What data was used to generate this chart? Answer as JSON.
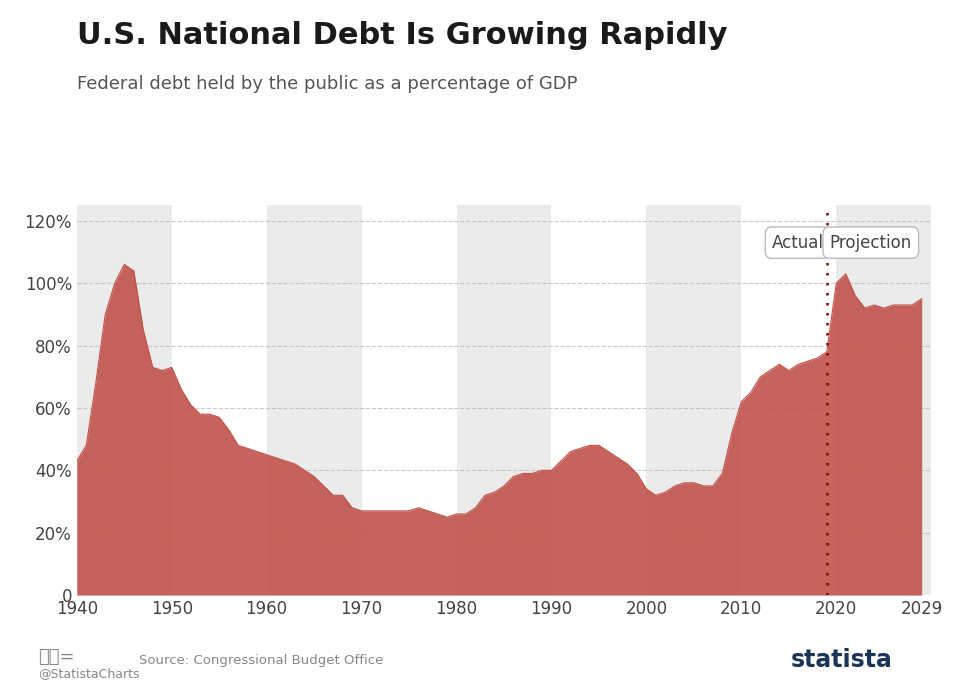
{
  "title": "U.S. National Debt Is Growing Rapidly",
  "subtitle": "Federal debt held by the public as a percentage of GDP",
  "source": "Source: Congressional Budget Office",
  "credit": "@StatistaCharts",
  "actual_label": "Actual",
  "projection_label": "Projection",
  "divider_year": 2019,
  "years": [
    1940,
    1941,
    1942,
    1943,
    1944,
    1945,
    1946,
    1947,
    1948,
    1949,
    1950,
    1951,
    1952,
    1953,
    1954,
    1955,
    1956,
    1957,
    1958,
    1959,
    1960,
    1961,
    1962,
    1963,
    1964,
    1965,
    1966,
    1967,
    1968,
    1969,
    1970,
    1971,
    1972,
    1973,
    1974,
    1975,
    1976,
    1977,
    1978,
    1979,
    1980,
    1981,
    1982,
    1983,
    1984,
    1985,
    1986,
    1987,
    1988,
    1989,
    1990,
    1991,
    1992,
    1993,
    1994,
    1995,
    1996,
    1997,
    1998,
    1999,
    2000,
    2001,
    2002,
    2003,
    2004,
    2005,
    2006,
    2007,
    2008,
    2009,
    2010,
    2011,
    2012,
    2013,
    2014,
    2015,
    2016,
    2017,
    2018,
    2019,
    2020,
    2021,
    2022,
    2023,
    2024,
    2025,
    2026,
    2027,
    2028,
    2029
  ],
  "values": [
    43,
    48,
    68,
    90,
    100,
    106,
    104,
    85,
    73,
    72,
    73,
    66,
    61,
    58,
    58,
    57,
    53,
    48,
    47,
    46,
    45,
    44,
    43,
    42,
    40,
    38,
    35,
    32,
    32,
    28,
    27,
    27,
    27,
    27,
    27,
    27,
    28,
    27,
    26,
    25,
    26,
    26,
    28,
    32,
    33,
    35,
    38,
    39,
    39,
    40,
    40,
    43,
    46,
    47,
    48,
    48,
    46,
    44,
    42,
    39,
    34,
    32,
    33,
    35,
    36,
    36,
    35,
    35,
    39,
    52,
    62,
    65,
    70,
    72,
    74,
    72,
    74,
    75,
    76,
    78,
    100,
    103,
    96,
    92,
    93,
    92,
    93,
    93,
    93,
    95
  ],
  "fill_color": "#c0524a",
  "fill_alpha": 0.9,
  "bg_color": "#ffffff",
  "stripe_color": "#ebebeb",
  "stripe_ranges": [
    [
      1940,
      1950
    ],
    [
      1960,
      1970
    ],
    [
      1980,
      1990
    ],
    [
      2000,
      2010
    ],
    [
      2020,
      2030
    ]
  ],
  "grid_color": "#bbbbbb",
  "title_fontsize": 22,
  "subtitle_fontsize": 13,
  "tick_fontsize": 12,
  "ylim": [
    0,
    125
  ],
  "yticks": [
    0,
    20,
    40,
    60,
    80,
    100,
    120
  ],
  "ytick_labels": [
    "0",
    "20%",
    "40%",
    "60%",
    "80%",
    "100%",
    "120%"
  ],
  "xticks": [
    1940,
    1950,
    1960,
    1970,
    1980,
    1990,
    2000,
    2010,
    2020,
    2029
  ],
  "title_color": "#1a1a1a",
  "subtitle_color": "#555555",
  "axis_color": "#444444"
}
